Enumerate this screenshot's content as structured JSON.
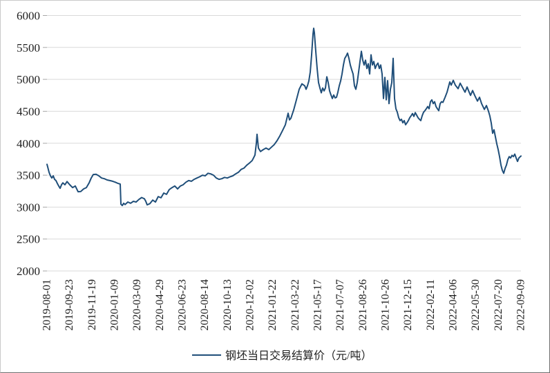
{
  "chart_data": {
    "type": "line",
    "title": "",
    "series_name": "钢坯当日交易结算价（元/吨）",
    "line_color": "#1f4e79",
    "grid_color": "#d9d9d9",
    "tick_color": "#a6a6a6",
    "label_color": "#1f1f1f",
    "grid": "horizontal",
    "legend_position": "bottom-center",
    "ylim": [
      2000,
      6000
    ],
    "y_ticks": [
      2000,
      2500,
      3000,
      3500,
      4000,
      4500,
      5000,
      5500,
      6000
    ],
    "x_tick_labels": [
      "2019-08-01",
      "2019-09-23",
      "2019-11-19",
      "2020-01-09",
      "2020-03-09",
      "2020-04-29",
      "2020-06-23",
      "2020-08-14",
      "2020-10-13",
      "2020-12-02",
      "2021-01-22",
      "2021-03-22",
      "2021-05-17",
      "2021-07-07",
      "2021-08-26",
      "2021-10-26",
      "2021-12-15",
      "2022-02-11",
      "2022-04-06",
      "2022-05-30",
      "2022-07-20",
      "2022-09-09"
    ],
    "x_axis_note": "Daily settlement price of steel billet; t is a linear trading-time position, 0 = 2019-08-01, 686 = 2022-09-09; tick labels are evenly spaced along t.",
    "t_range": [
      0,
      686
    ],
    "points": [
      [
        0,
        3670
      ],
      [
        1,
        3630
      ],
      [
        3,
        3545
      ],
      [
        5,
        3490
      ],
      [
        7,
        3455
      ],
      [
        9,
        3490
      ],
      [
        11,
        3435
      ],
      [
        13,
        3415
      ],
      [
        15,
        3370
      ],
      [
        17,
        3330
      ],
      [
        19,
        3295
      ],
      [
        21,
        3350
      ],
      [
        23,
        3380
      ],
      [
        26,
        3350
      ],
      [
        29,
        3400
      ],
      [
        33,
        3350
      ],
      [
        37,
        3305
      ],
      [
        41,
        3330
      ],
      [
        45,
        3240
      ],
      [
        49,
        3245
      ],
      [
        53,
        3285
      ],
      [
        57,
        3305
      ],
      [
        61,
        3380
      ],
      [
        64,
        3455
      ],
      [
        67,
        3510
      ],
      [
        71,
        3515
      ],
      [
        75,
        3490
      ],
      [
        79,
        3455
      ],
      [
        83,
        3445
      ],
      [
        87,
        3425
      ],
      [
        91,
        3415
      ],
      [
        95,
        3405
      ],
      [
        99,
        3390
      ],
      [
        103,
        3370
      ],
      [
        106,
        3360
      ],
      [
        107,
        3045
      ],
      [
        109,
        3025
      ],
      [
        111,
        3060
      ],
      [
        113,
        3040
      ],
      [
        117,
        3080
      ],
      [
        121,
        3060
      ],
      [
        125,
        3090
      ],
      [
        129,
        3080
      ],
      [
        133,
        3120
      ],
      [
        137,
        3150
      ],
      [
        141,
        3130
      ],
      [
        143,
        3090
      ],
      [
        145,
        3035
      ],
      [
        149,
        3055
      ],
      [
        153,
        3110
      ],
      [
        157,
        3080
      ],
      [
        161,
        3165
      ],
      [
        165,
        3145
      ],
      [
        169,
        3220
      ],
      [
        173,
        3200
      ],
      [
        177,
        3275
      ],
      [
        181,
        3305
      ],
      [
        185,
        3330
      ],
      [
        189,
        3285
      ],
      [
        193,
        3330
      ],
      [
        197,
        3350
      ],
      [
        201,
        3390
      ],
      [
        205,
        3415
      ],
      [
        209,
        3405
      ],
      [
        213,
        3435
      ],
      [
        217,
        3455
      ],
      [
        221,
        3475
      ],
      [
        225,
        3500
      ],
      [
        229,
        3490
      ],
      [
        233,
        3530
      ],
      [
        237,
        3520
      ],
      [
        241,
        3500
      ],
      [
        245,
        3455
      ],
      [
        249,
        3435
      ],
      [
        253,
        3445
      ],
      [
        257,
        3465
      ],
      [
        261,
        3455
      ],
      [
        265,
        3475
      ],
      [
        269,
        3490
      ],
      [
        273,
        3520
      ],
      [
        277,
        3545
      ],
      [
        281,
        3590
      ],
      [
        285,
        3610
      ],
      [
        289,
        3655
      ],
      [
        293,
        3690
      ],
      [
        297,
        3730
      ],
      [
        301,
        3815
      ],
      [
        303,
        4000
      ],
      [
        304,
        4140
      ],
      [
        306,
        3925
      ],
      [
        309,
        3870
      ],
      [
        313,
        3900
      ],
      [
        317,
        3925
      ],
      [
        321,
        3900
      ],
      [
        325,
        3940
      ],
      [
        329,
        3980
      ],
      [
        333,
        4040
      ],
      [
        337,
        4115
      ],
      [
        341,
        4200
      ],
      [
        345,
        4290
      ],
      [
        349,
        4470
      ],
      [
        351,
        4365
      ],
      [
        353,
        4390
      ],
      [
        357,
        4520
      ],
      [
        361,
        4680
      ],
      [
        365,
        4845
      ],
      [
        369,
        4930
      ],
      [
        373,
        4900
      ],
      [
        375,
        4845
      ],
      [
        377,
        4900
      ],
      [
        379,
        4975
      ],
      [
        381,
        5115
      ],
      [
        383,
        5385
      ],
      [
        385,
        5710
      ],
      [
        386,
        5800
      ],
      [
        387,
        5730
      ],
      [
        389,
        5440
      ],
      [
        391,
        5170
      ],
      [
        393,
        4950
      ],
      [
        395,
        4865
      ],
      [
        397,
        4790
      ],
      [
        399,
        4865
      ],
      [
        401,
        4820
      ],
      [
        403,
        4865
      ],
      [
        405,
        5040
      ],
      [
        407,
        4950
      ],
      [
        409,
        4820
      ],
      [
        411,
        4755
      ],
      [
        413,
        4700
      ],
      [
        415,
        4755
      ],
      [
        417,
        4710
      ],
      [
        419,
        4720
      ],
      [
        421,
        4800
      ],
      [
        423,
        4900
      ],
      [
        425,
        4975
      ],
      [
        427,
        5085
      ],
      [
        429,
        5225
      ],
      [
        431,
        5330
      ],
      [
        433,
        5365
      ],
      [
        435,
        5410
      ],
      [
        437,
        5330
      ],
      [
        439,
        5225
      ],
      [
        441,
        5150
      ],
      [
        443,
        5085
      ],
      [
        445,
        4900
      ],
      [
        447,
        4845
      ],
      [
        449,
        4950
      ],
      [
        451,
        5115
      ],
      [
        453,
        5280
      ],
      [
        455,
        5440
      ],
      [
        457,
        5300
      ],
      [
        459,
        5225
      ],
      [
        461,
        5300
      ],
      [
        463,
        5170
      ],
      [
        465,
        5245
      ],
      [
        467,
        5085
      ],
      [
        469,
        5385
      ],
      [
        471,
        5225
      ],
      [
        473,
        5280
      ],
      [
        475,
        5170
      ],
      [
        477,
        5225
      ],
      [
        479,
        5255
      ],
      [
        481,
        5170
      ],
      [
        483,
        5225
      ],
      [
        485,
        5085
      ],
      [
        487,
        4700
      ],
      [
        489,
        5030
      ],
      [
        491,
        4680
      ],
      [
        493,
        4980
      ],
      [
        495,
        4620
      ],
      [
        497,
        4845
      ],
      [
        499,
        4950
      ],
      [
        501,
        5330
      ],
      [
        503,
        4700
      ],
      [
        505,
        4540
      ],
      [
        507,
        4485
      ],
      [
        509,
        4400
      ],
      [
        511,
        4355
      ],
      [
        513,
        4375
      ],
      [
        515,
        4320
      ],
      [
        517,
        4355
      ],
      [
        519,
        4290
      ],
      [
        521,
        4320
      ],
      [
        523,
        4355
      ],
      [
        525,
        4400
      ],
      [
        527,
        4430
      ],
      [
        529,
        4465
      ],
      [
        531,
        4420
      ],
      [
        533,
        4480
      ],
      [
        535,
        4440
      ],
      [
        537,
        4400
      ],
      [
        539,
        4375
      ],
      [
        541,
        4355
      ],
      [
        543,
        4430
      ],
      [
        545,
        4485
      ],
      [
        547,
        4510
      ],
      [
        549,
        4540
      ],
      [
        551,
        4575
      ],
      [
        553,
        4540
      ],
      [
        555,
        4650
      ],
      [
        557,
        4680
      ],
      [
        559,
        4620
      ],
      [
        561,
        4650
      ],
      [
        563,
        4575
      ],
      [
        565,
        4540
      ],
      [
        567,
        4510
      ],
      [
        569,
        4620
      ],
      [
        571,
        4650
      ],
      [
        573,
        4640
      ],
      [
        576,
        4715
      ],
      [
        579,
        4800
      ],
      [
        583,
        4960
      ],
      [
        585,
        4910
      ],
      [
        588,
        4985
      ],
      [
        591,
        4910
      ],
      [
        595,
        4855
      ],
      [
        598,
        4940
      ],
      [
        601,
        4880
      ],
      [
        605,
        4800
      ],
      [
        608,
        4880
      ],
      [
        611,
        4800
      ],
      [
        613,
        4750
      ],
      [
        616,
        4825
      ],
      [
        619,
        4750
      ],
      [
        623,
        4660
      ],
      [
        626,
        4720
      ],
      [
        629,
        4620
      ],
      [
        633,
        4530
      ],
      [
        636,
        4590
      ],
      [
        639,
        4500
      ],
      [
        641,
        4425
      ],
      [
        643,
        4315
      ],
      [
        645,
        4155
      ],
      [
        647,
        4210
      ],
      [
        649,
        4100
      ],
      [
        651,
        3990
      ],
      [
        653,
        3900
      ],
      [
        655,
        3790
      ],
      [
        657,
        3660
      ],
      [
        659,
        3575
      ],
      [
        661,
        3530
      ],
      [
        663,
        3605
      ],
      [
        665,
        3660
      ],
      [
        667,
        3745
      ],
      [
        669,
        3790
      ],
      [
        671,
        3770
      ],
      [
        673,
        3810
      ],
      [
        675,
        3790
      ],
      [
        677,
        3830
      ],
      [
        679,
        3770
      ],
      [
        681,
        3715
      ],
      [
        683,
        3770
      ],
      [
        685,
        3790
      ],
      [
        686,
        3800
      ]
    ]
  }
}
